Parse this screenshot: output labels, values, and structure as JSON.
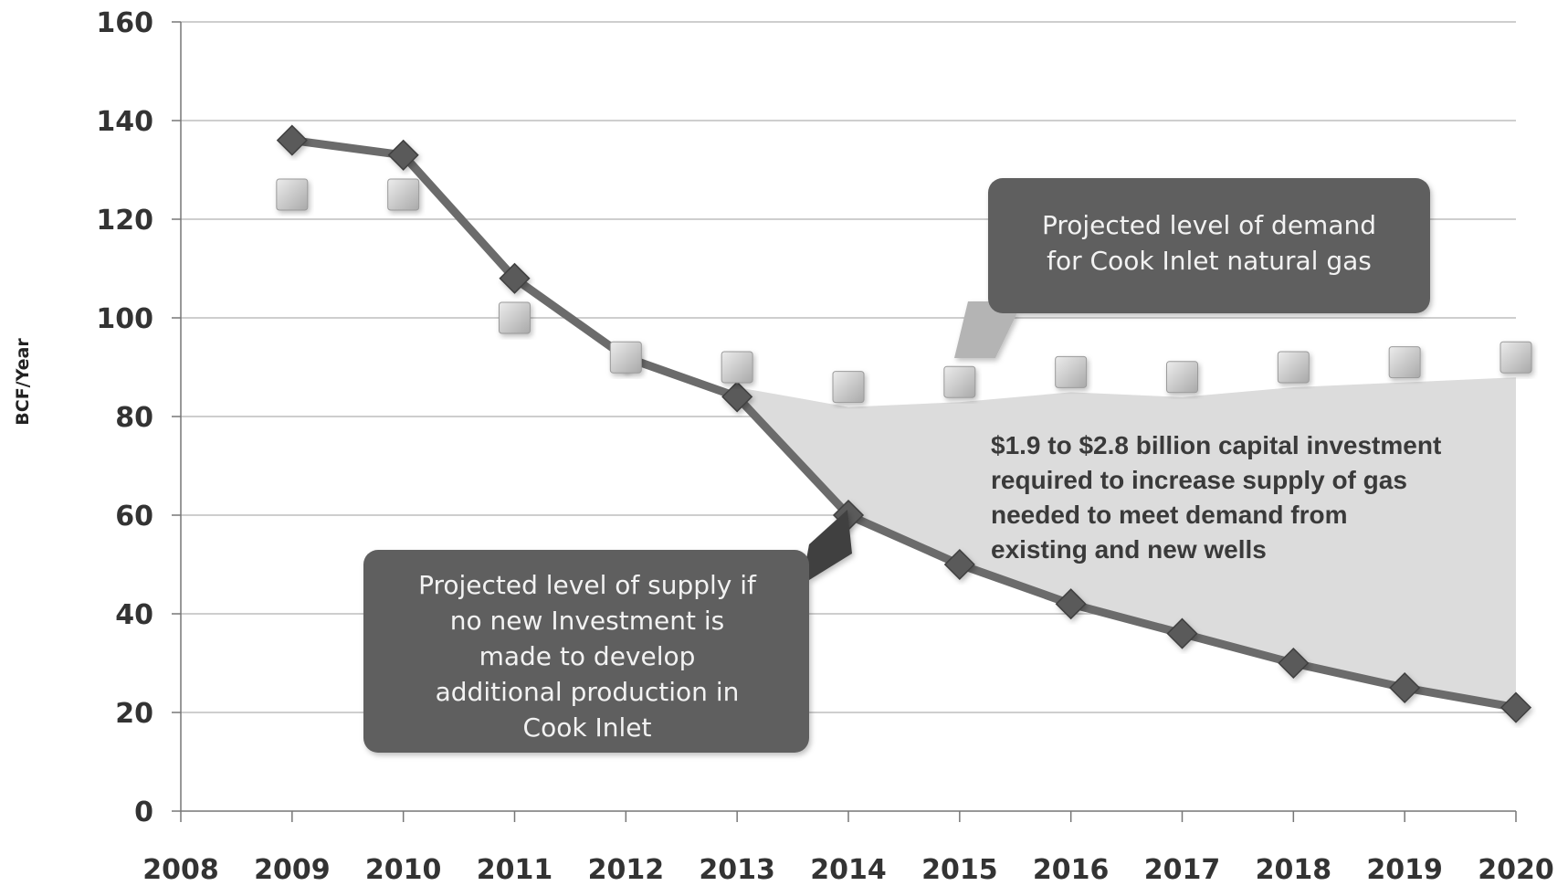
{
  "chart_data": {
    "type": "line",
    "ylabel": "BCF/Year",
    "xlabel": "",
    "title": "",
    "x": [
      2008,
      2009,
      2010,
      2011,
      2012,
      2013,
      2014,
      2015,
      2016,
      2017,
      2018,
      2019,
      2020
    ],
    "x_tick_labels": [
      "2008",
      "2009",
      "2010",
      "2011",
      "2012",
      "2013",
      "2014",
      "2015",
      "2016",
      "2017",
      "2018",
      "2019",
      "2020"
    ],
    "y_ticks": [
      0,
      20,
      40,
      60,
      80,
      100,
      120,
      140,
      160
    ],
    "xlim": [
      2008,
      2020
    ],
    "ylim": [
      0,
      160
    ],
    "grid": true,
    "series": [
      {
        "role": "supply",
        "marker": "diamond",
        "x": [
          2009,
          2010,
          2011,
          2012,
          2013,
          2014,
          2015,
          2016,
          2017,
          2018,
          2019,
          2020
        ],
        "values": [
          136,
          133,
          108,
          92,
          84,
          60,
          50,
          42,
          36,
          30,
          25,
          21
        ]
      },
      {
        "role": "demand",
        "marker": "square",
        "x": [
          2009,
          2010,
          2011,
          2012,
          2013,
          2014,
          2015,
          2016,
          2017,
          2018,
          2019,
          2020
        ],
        "values": [
          125,
          125,
          100,
          92,
          90,
          86,
          87,
          89,
          88,
          90,
          91,
          92
        ]
      }
    ],
    "gap_area": {
      "from_x": 2013,
      "to_x": 2020
    },
    "annotations": {
      "demand_callout": [
        "Projected level of demand",
        "for  Cook Inlet natural gas"
      ],
      "supply_callout": [
        "Projected level of supply if",
        "no new Investment is",
        "made to develop",
        "additional production in",
        "Cook Inlet"
      ],
      "investment_note": [
        "$1.9 to $2.8 billion capital investment",
        "required to increase supply of gas",
        "needed to meet demand from",
        "existing and new wells"
      ]
    }
  },
  "colors": {
    "supply_line": "#6b6b6b",
    "supply_marker": "#5a5a5a",
    "demand_marker": "#c9c9c9",
    "gap_fill": "#dcdcdc",
    "callout_fill": "#5f5f5f",
    "grid": "#bdbdbd"
  }
}
